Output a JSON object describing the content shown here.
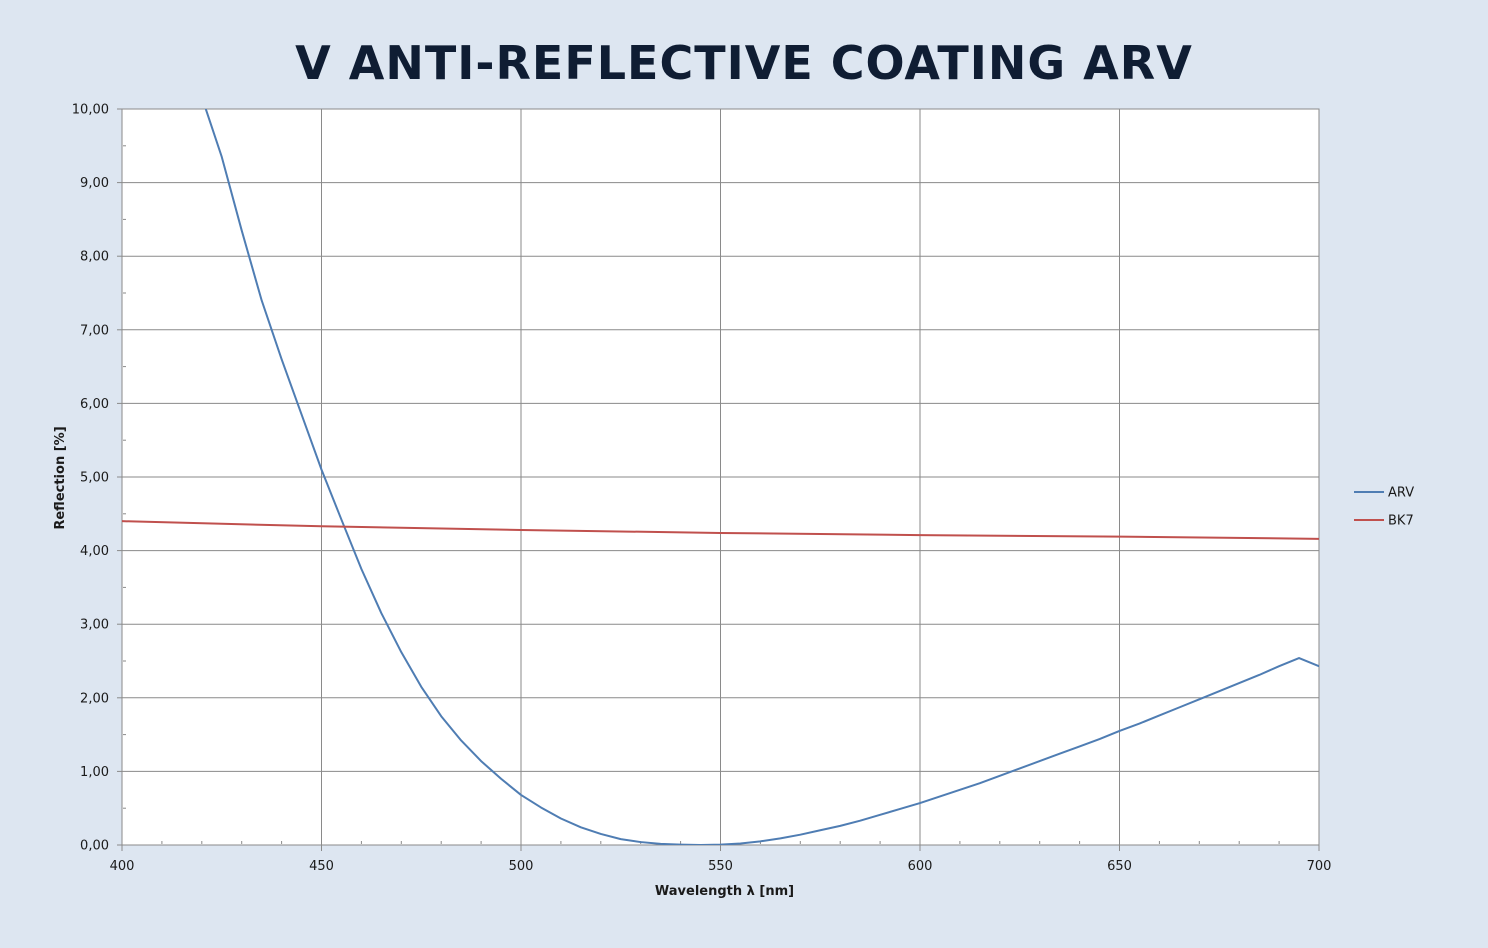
{
  "chart_data": {
    "type": "line",
    "title": "V ANTI-REFLECTIVE COATING ARV",
    "xlabel": "Wavelength λ [nm]",
    "ylabel": "Reflection [%]",
    "xlim": [
      400,
      700
    ],
    "ylim": [
      0,
      10
    ],
    "xticks": [
      400,
      450,
      500,
      550,
      600,
      650,
      700
    ],
    "xtick_labels": [
      "400",
      "450",
      "500",
      "550",
      "600",
      "650",
      "700"
    ],
    "yticks": [
      0,
      1,
      2,
      3,
      4,
      5,
      6,
      7,
      8,
      9,
      10
    ],
    "ytick_labels": [
      "0,00",
      "1,00",
      "2,00",
      "3,00",
      "4,00",
      "5,00",
      "6,00",
      "7,00",
      "8,00",
      "9,00",
      "10,00"
    ],
    "grid": true,
    "legend_position": "right",
    "series": [
      {
        "name": "ARV",
        "color": "#4f7db3",
        "x": [
          421,
          425,
          430,
          435,
          440,
          445,
          450,
          455,
          460,
          465,
          470,
          475,
          480,
          485,
          490,
          495,
          500,
          505,
          510,
          515,
          520,
          525,
          530,
          535,
          540,
          545,
          550,
          555,
          560,
          565,
          570,
          575,
          580,
          585,
          590,
          595,
          600,
          605,
          610,
          615,
          620,
          625,
          630,
          635,
          640,
          645,
          650,
          655,
          660,
          665,
          670,
          675,
          680,
          685,
          690,
          695,
          700
        ],
        "y": [
          10.0,
          9.35,
          8.35,
          7.4,
          6.6,
          5.85,
          5.1,
          4.42,
          3.75,
          3.15,
          2.62,
          2.15,
          1.75,
          1.42,
          1.14,
          0.9,
          0.68,
          0.51,
          0.36,
          0.24,
          0.15,
          0.08,
          0.04,
          0.015,
          0.005,
          0.0,
          0.005,
          0.02,
          0.05,
          0.09,
          0.14,
          0.2,
          0.26,
          0.33,
          0.41,
          0.49,
          0.57,
          0.66,
          0.75,
          0.84,
          0.94,
          1.04,
          1.14,
          1.24,
          1.34,
          1.44,
          1.55,
          1.65,
          1.76,
          1.87,
          1.98,
          2.09,
          2.2,
          2.31,
          2.43,
          2.54,
          2.43
        ]
      },
      {
        "name": "BK7",
        "color": "#c0504d",
        "x": [
          400,
          450,
          500,
          550,
          600,
          650,
          700
        ],
        "y": [
          4.4,
          4.33,
          4.28,
          4.24,
          4.21,
          4.19,
          4.16
        ]
      }
    ]
  }
}
